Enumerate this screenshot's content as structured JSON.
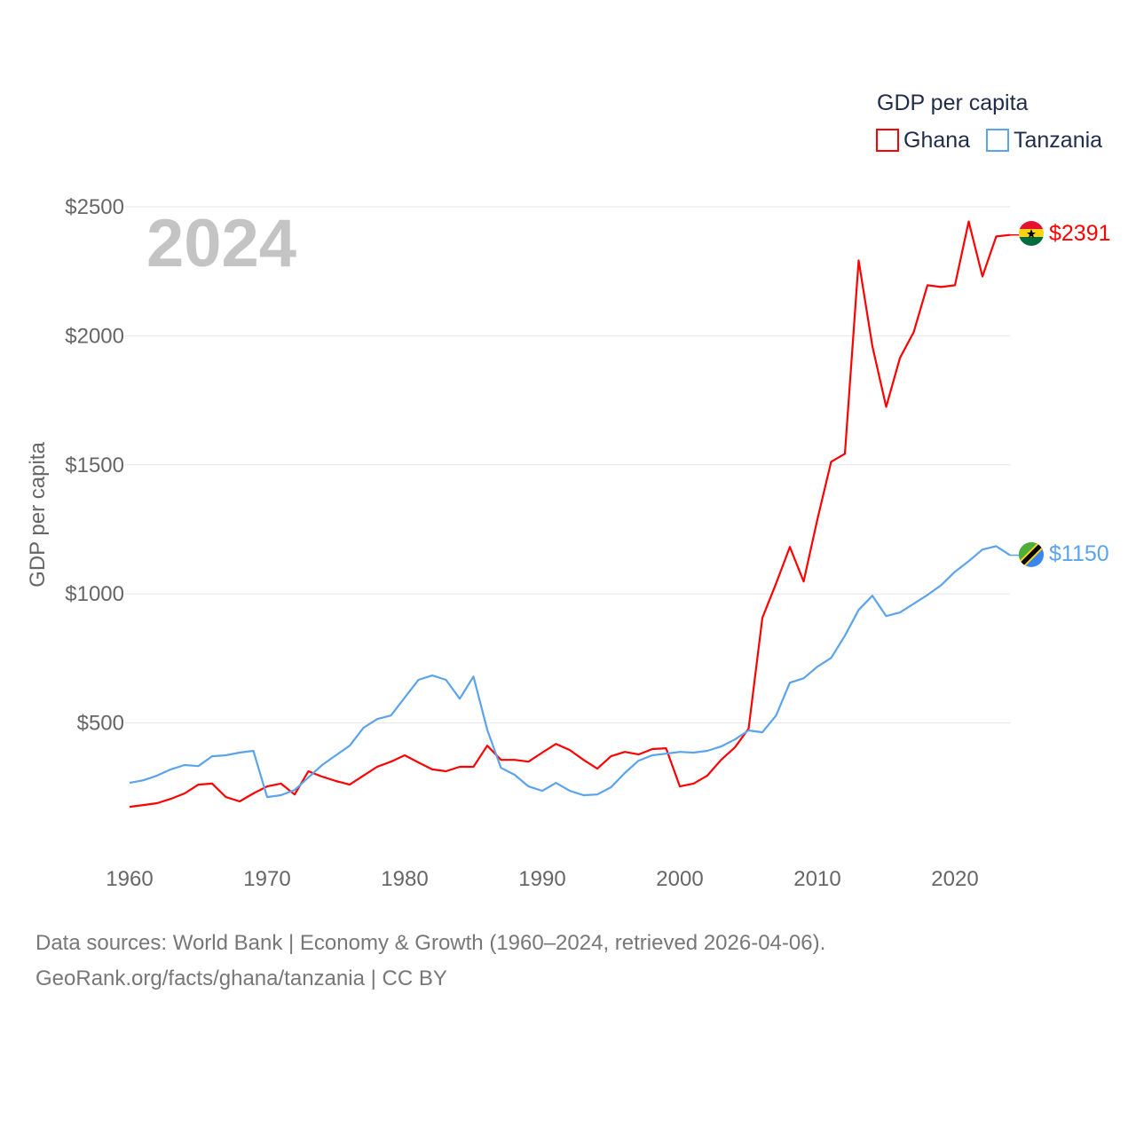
{
  "chart_data": {
    "type": "line",
    "title": "GDP per capita",
    "ylabel": "GDP per capita",
    "xlabel": "",
    "year_label": "2024",
    "x": [
      1960,
      1961,
      1962,
      1963,
      1964,
      1965,
      1966,
      1967,
      1968,
      1969,
      1970,
      1971,
      1972,
      1973,
      1974,
      1975,
      1976,
      1977,
      1978,
      1979,
      1980,
      1981,
      1982,
      1983,
      1984,
      1985,
      1986,
      1987,
      1988,
      1989,
      1990,
      1991,
      1992,
      1993,
      1994,
      1995,
      1996,
      1997,
      1998,
      1999,
      2000,
      2001,
      2002,
      2003,
      2004,
      2005,
      2006,
      2007,
      2008,
      2009,
      2010,
      2011,
      2012,
      2013,
      2014,
      2015,
      2016,
      2017,
      2018,
      2019,
      2020,
      2021,
      2022,
      2023,
      2024
    ],
    "xlim": [
      1960,
      2024
    ],
    "ylim": [
      0,
      2500
    ],
    "xticks": [
      1960,
      1970,
      1980,
      1990,
      2000,
      2010,
      2020
    ],
    "xtick_labels": [
      "1960",
      "1970",
      "1980",
      "1990",
      "2000",
      "2010",
      "2020"
    ],
    "yticks": [
      500,
      1000,
      1500,
      2000,
      2500
    ],
    "ytick_labels": [
      "$500",
      "$1000",
      "$1500",
      "$2000",
      "$2500"
    ],
    "grid": true,
    "legend_position": "top-right",
    "series": [
      {
        "name": "Ghana",
        "color": "#ff0000",
        "end_label": "$2391",
        "values": [
          175,
          182,
          189,
          206,
          227,
          261,
          265,
          213,
          196,
          227,
          254,
          265,
          223,
          313,
          292,
          275,
          261,
          296,
          330,
          350,
          375,
          347,
          320,
          313,
          330,
          330,
          412,
          357,
          357,
          350,
          385,
          419,
          395,
          357,
          323,
          371,
          388,
          378,
          399,
          402,
          254,
          265,
          296,
          357,
          405,
          478,
          907,
          1041,
          1182,
          1048,
          1289,
          1512,
          1543,
          2292,
          1959,
          1725,
          1914,
          2014,
          2196,
          2189,
          2196,
          2443,
          2230,
          2385,
          2391
        ]
      },
      {
        "name": "Tanzania",
        "color": "#5ba4ec",
        "end_label": "$1150",
        "values": [
          268,
          278,
          296,
          320,
          337,
          333,
          371,
          375,
          385,
          392,
          213,
          220,
          240,
          289,
          337,
          375,
          412,
          481,
          515,
          529,
          598,
          667,
          684,
          667,
          594,
          680,
          474,
          326,
          299,
          254,
          237,
          268,
          237,
          220,
          223,
          251,
          306,
          354,
          375,
          381,
          388,
          385,
          392,
          409,
          436,
          471,
          464,
          529,
          656,
          673,
          718,
          752,
          838,
          938,
          993,
          914,
          928,
          962,
          996,
          1034,
          1086,
          1127,
          1172,
          1185,
          1150
        ]
      }
    ]
  },
  "footer": {
    "line1": "Data sources: World Bank | Economy & Growth (1960–2024, retrieved 2026-04-06).",
    "line2": "GeoRank.org/facts/ghana/tanzania | CC BY"
  }
}
